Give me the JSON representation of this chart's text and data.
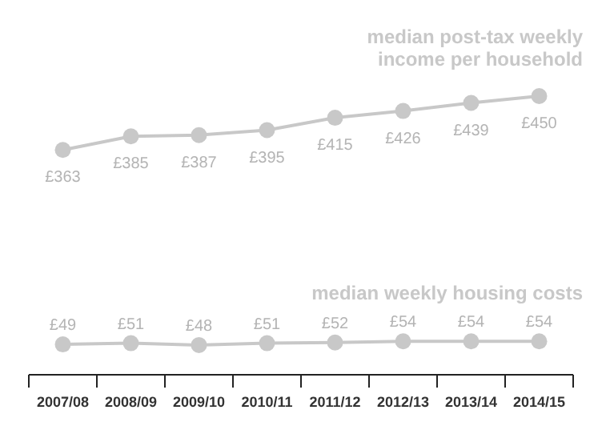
{
  "chart_data": {
    "type": "line",
    "categories": [
      "2007/08",
      "2008/09",
      "2009/10",
      "2010/11",
      "2011/12",
      "2012/13",
      "2013/14",
      "2014/15"
    ],
    "series": [
      {
        "name": "median post-tax weekly income per household",
        "color": "#c8c8c8",
        "values": [
          363,
          385,
          387,
          395,
          415,
          426,
          439,
          450
        ],
        "value_labels": [
          "£363",
          "£385",
          "£387",
          "£395",
          "£415",
          "£426",
          "£439",
          "£450"
        ]
      },
      {
        "name": "median weekly housing costs",
        "color": "#c8c8c8",
        "values": [
          49,
          51,
          48,
          51,
          52,
          54,
          54,
          54
        ],
        "value_labels": [
          "£49",
          "£51",
          "£48",
          "£51",
          "£52",
          "£54",
          "£54",
          "£54"
        ]
      }
    ],
    "marker": "circle",
    "line_style": "solid",
    "legend": false,
    "grid": false
  }
}
